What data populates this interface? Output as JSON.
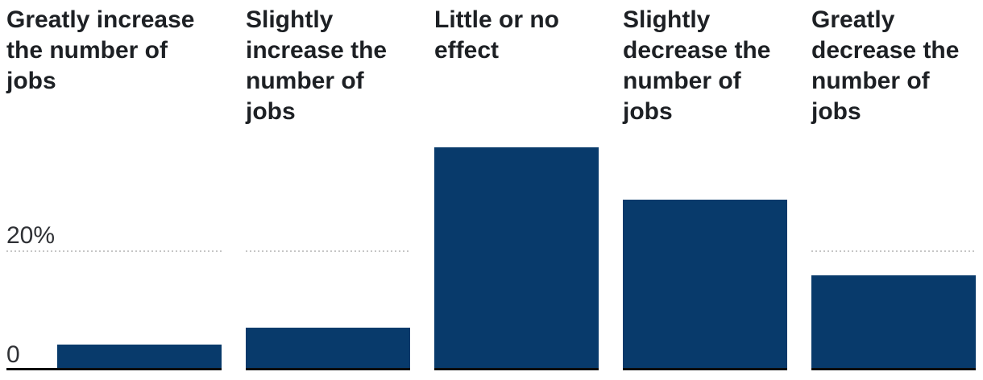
{
  "chart_data": {
    "type": "bar",
    "title": "",
    "categories": [
      "Greatly increase the number of jobs",
      "Slightly increase the number of jobs",
      "Little or no effect",
      "Slightly decrease the number of jobs",
      "Greatly decrease the number of jobs"
    ],
    "values": [
      4,
      7,
      38,
      29,
      16
    ],
    "unit": "%",
    "ylim": [
      0,
      40
    ],
    "yticks": [
      {
        "value": 20,
        "label": "20%"
      },
      {
        "value": 0,
        "label": "0"
      }
    ],
    "gridlines": [
      20
    ],
    "grid_style": "dotted",
    "legend": "none",
    "layout": "small multiples: one bar per facet, each facet has its own dotted 20% gridline and black zero baseline; y-axis labels shown only on first facet"
  },
  "colors": {
    "bar": "#083a6b",
    "gridline": "#c6c6c6",
    "baseline": "#0b0b0c",
    "category_text": "#1d2024",
    "axis_text": "#2f3135",
    "background": "#ffffff"
  }
}
